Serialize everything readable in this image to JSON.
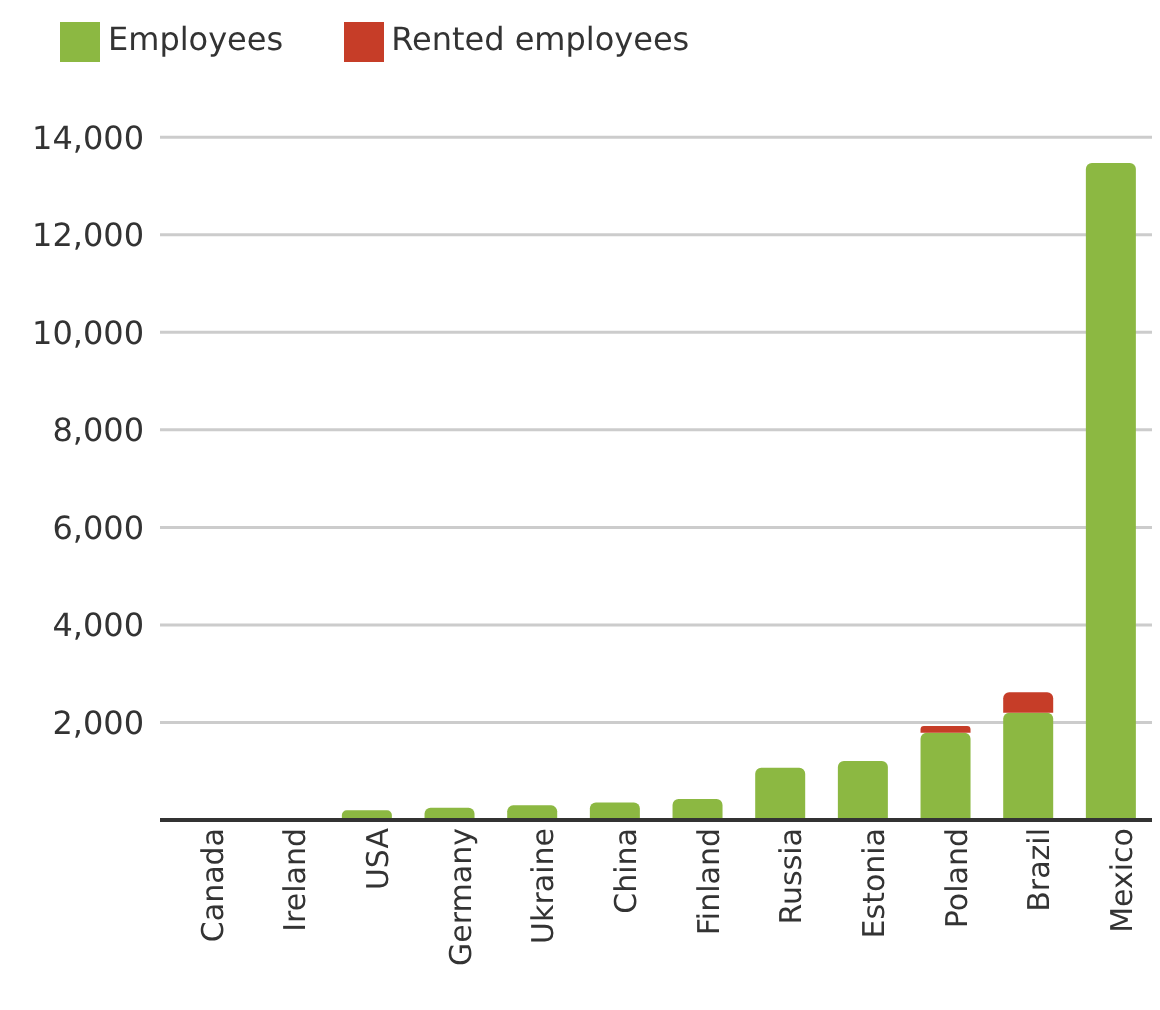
{
  "chart_data": {
    "type": "bar",
    "stacked": true,
    "categories": [
      "Canada",
      "Ireland",
      "USA",
      "Germany",
      "Ukraine",
      "China",
      "Finland",
      "Russia",
      "Estonia",
      "Poland",
      "Brazil",
      "Mexico"
    ],
    "series": [
      {
        "name": "Employees",
        "color": "#8cb842",
        "values": [
          null,
          null,
          200,
          250,
          300,
          360,
          430,
          1070,
          1210,
          1790,
          2200,
          13470
        ]
      },
      {
        "name": "Rented employees",
        "color": "#c63d28",
        "values": [
          0,
          0,
          0,
          0,
          0,
          0,
          0,
          0,
          0,
          140,
          420,
          0
        ]
      }
    ],
    "ylim": [
      0,
      14000
    ],
    "yticks": [
      {
        "value": 0,
        "label": null
      },
      {
        "value": 2000,
        "label": "2,000"
      },
      {
        "value": 4000,
        "label": "4,000"
      },
      {
        "value": 6000,
        "label": "6,000"
      },
      {
        "value": 8000,
        "label": "8,000"
      },
      {
        "value": 10000,
        "label": "10,000"
      },
      {
        "value": 12000,
        "label": "12,000"
      },
      {
        "value": 14000,
        "label": "14,000"
      }
    ],
    "grid": "y",
    "legend": "top left"
  }
}
